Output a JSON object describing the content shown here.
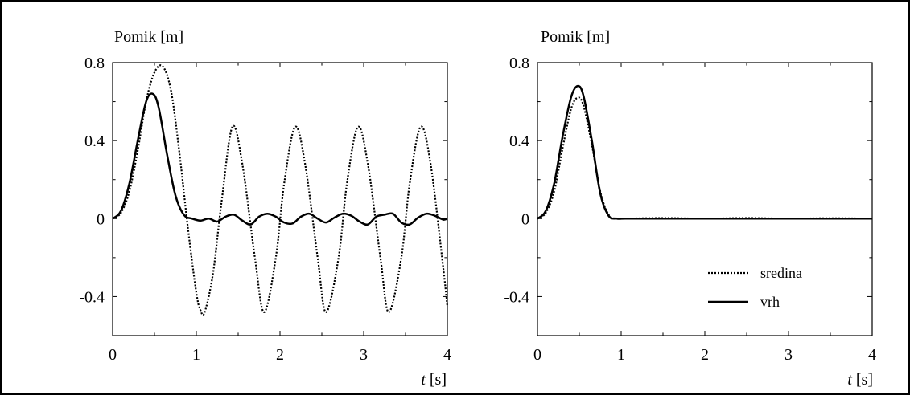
{
  "chart_data": [
    {
      "type": "line",
      "title": "",
      "ylabel": "Pomik [m]",
      "xlabel_var": "t",
      "xlabel_unit": "[s]",
      "xlim": [
        0,
        4
      ],
      "ylim": [
        -0.6,
        0.8
      ],
      "xticks": [
        0,
        1,
        2,
        3,
        4
      ],
      "xtick_labels": [
        "0",
        "1",
        "2",
        "3",
        "4"
      ],
      "yticks": [
        0.8,
        0.4,
        0,
        -0.4
      ],
      "ytick_labels": [
        "0.8",
        "0.4",
        "0",
        "-0.4"
      ],
      "grid": false,
      "series": [
        {
          "key": "sredina",
          "style": "dotted",
          "x": [
            0,
            0.1,
            0.2,
            0.3,
            0.4,
            0.5,
            0.6,
            0.7,
            0.8,
            0.9,
            1.0,
            1.05,
            1.1,
            1.2,
            1.3,
            1.43,
            1.55,
            1.7,
            1.81,
            1.95,
            2.05,
            2.18,
            2.3,
            2.45,
            2.55,
            2.7,
            2.8,
            2.93,
            3.05,
            3.2,
            3.3,
            3.45,
            3.55,
            3.68,
            3.8,
            3.95,
            4.0
          ],
          "y": [
            0,
            0.03,
            0.14,
            0.35,
            0.6,
            0.75,
            0.78,
            0.65,
            0.33,
            -0.05,
            -0.38,
            -0.47,
            -0.48,
            -0.28,
            0.08,
            0.47,
            0.28,
            -0.2,
            -0.48,
            -0.2,
            0.18,
            0.47,
            0.28,
            -0.2,
            -0.48,
            -0.2,
            0.18,
            0.47,
            0.28,
            -0.2,
            -0.48,
            -0.2,
            0.18,
            0.47,
            0.28,
            -0.25,
            -0.45
          ]
        },
        {
          "key": "vrh",
          "style": "solid",
          "x": [
            0,
            0.1,
            0.2,
            0.3,
            0.4,
            0.48,
            0.55,
            0.65,
            0.75,
            0.85,
            0.95,
            1.05,
            1.15,
            1.25,
            1.35,
            1.45,
            1.55,
            1.65,
            1.75,
            1.85,
            1.95,
            2.05,
            2.15,
            2.25,
            2.35,
            2.45,
            2.55,
            2.65,
            2.75,
            2.85,
            2.95,
            3.05,
            3.15,
            3.25,
            3.35,
            3.45,
            3.55,
            3.65,
            3.75,
            3.85,
            3.95,
            4.0
          ],
          "y": [
            0,
            0.04,
            0.18,
            0.4,
            0.6,
            0.64,
            0.57,
            0.33,
            0.12,
            0.02,
            0.0,
            -0.01,
            0.0,
            -0.015,
            0.01,
            0.02,
            -0.01,
            -0.03,
            0.01,
            0.025,
            0.01,
            -0.02,
            -0.025,
            0.01,
            0.025,
            0.0,
            -0.02,
            0.005,
            0.025,
            0.015,
            -0.015,
            -0.03,
            0.01,
            0.02,
            0.025,
            -0.02,
            -0.03,
            0.005,
            0.025,
            0.015,
            -0.005,
            0.0
          ]
        }
      ]
    },
    {
      "type": "line",
      "title": "",
      "ylabel": "Pomik [m]",
      "xlabel_var": "t",
      "xlabel_unit": "[s]",
      "xlim": [
        0,
        4
      ],
      "ylim": [
        -0.6,
        0.8
      ],
      "xticks": [
        0,
        1,
        2,
        3,
        4
      ],
      "xtick_labels": [
        "0",
        "1",
        "2",
        "3",
        "4"
      ],
      "yticks": [
        0.8,
        0.4,
        0,
        -0.4
      ],
      "ytick_labels": [
        "0.8",
        "0.4",
        "0",
        "-0.4"
      ],
      "grid": false,
      "legend_position": "bottom-right",
      "legend": [
        {
          "label": "sredina",
          "style": "dotted"
        },
        {
          "label": "vrh",
          "style": "solid"
        }
      ],
      "series": [
        {
          "name": "sredina",
          "style": "dotted",
          "x": [
            0,
            0.1,
            0.2,
            0.3,
            0.4,
            0.48,
            0.55,
            0.65,
            0.75,
            0.85,
            0.95,
            1.05,
            1.5,
            2.0,
            2.5,
            3.0,
            3.5,
            4.0
          ],
          "y": [
            0,
            0.03,
            0.14,
            0.36,
            0.56,
            0.62,
            0.58,
            0.38,
            0.14,
            0.02,
            0.0,
            0.0,
            0.003,
            0.0,
            0.003,
            0.0,
            0.002,
            0.0
          ]
        },
        {
          "name": "vrh",
          "style": "solid",
          "x": [
            0,
            0.1,
            0.2,
            0.3,
            0.4,
            0.48,
            0.55,
            0.65,
            0.75,
            0.85,
            0.95,
            1.05,
            1.5,
            2.0,
            2.5,
            3.0,
            3.5,
            4.0
          ],
          "y": [
            0,
            0.04,
            0.18,
            0.42,
            0.62,
            0.68,
            0.63,
            0.4,
            0.13,
            0.015,
            0.0,
            0.0,
            0.0,
            0.0,
            0.0,
            0.0,
            0.0,
            0.0
          ]
        }
      ]
    }
  ]
}
